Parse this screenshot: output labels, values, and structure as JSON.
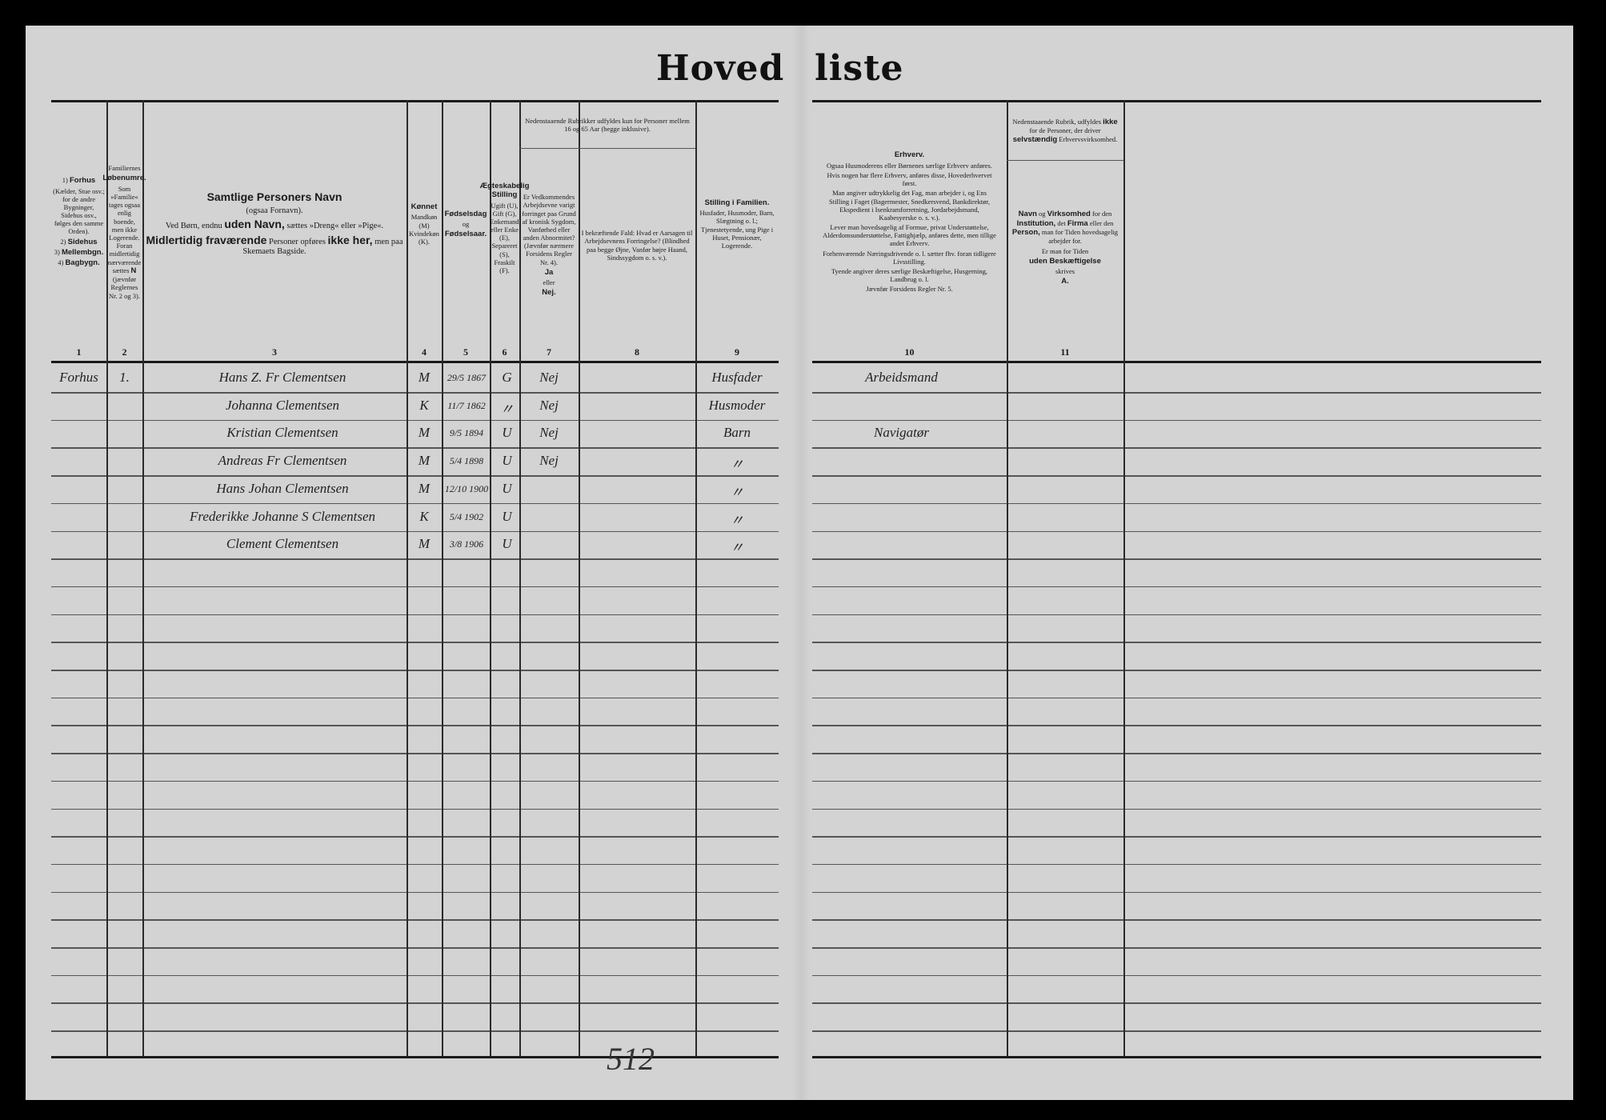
{
  "title": {
    "part1": "Hoved",
    "part2": "liste"
  },
  "page_number": "512",
  "headers": {
    "c1": [
      [
        {
          "text": "1) "
        },
        {
          "text": "Forhus",
          "bold": true
        }
      ],
      [
        {
          "text": "(Kælder, Stue osv.; for de andre Bygninger, Sidehus osv., følges den samme Orden)."
        }
      ],
      [
        {
          "text": "2) "
        },
        {
          "text": "Sidehus",
          "bold": true
        }
      ],
      [
        {
          "text": "3) "
        },
        {
          "text": "Mellembgn.",
          "bold": true
        }
      ],
      [
        {
          "text": "4) "
        },
        {
          "text": "Bagbygn.",
          "bold": true
        }
      ]
    ],
    "c2": [
      [
        {
          "text": "Familiernes"
        }
      ],
      [
        {
          "text": "Løbenumre.",
          "bold": true
        }
      ],
      [
        {
          "text": "Som »Familie« tages ogsaa enlig boende, men ikke Logerende. Foran midlertidig nærværende sættes "
        },
        {
          "text": "N",
          "bold": true
        },
        {
          "text": " (jævnfør Reglernes Nr. 2 og 3)."
        }
      ]
    ],
    "c3": [
      [
        {
          "text": "Samtlige Personers Navn",
          "bold": true
        }
      ],
      [
        {
          "text": "(ogsaa Fornavn)."
        }
      ],
      [
        {
          "text": "Ved Børn, endnu "
        },
        {
          "text": "uden Navn,",
          "bold": true
        },
        {
          "text": " sættes »Dreng« eller »Pige«."
        }
      ],
      [
        {
          "text": "Midlertidig fraværende",
          "bold": true
        },
        {
          "text": " Personer opføres "
        },
        {
          "text": "ikke her,",
          "bold": true
        },
        {
          "text": " men paa Skemaets Bagside."
        }
      ]
    ],
    "c4": [
      [
        {
          "text": "Kønnet",
          "bold": true
        }
      ],
      [
        {
          "text": "Mandkøn (M) Kvindekøn (K)."
        }
      ]
    ],
    "c5": [
      [
        {
          "text": "Fødselsdag",
          "bold": true
        }
      ],
      [
        {
          "text": "og"
        }
      ],
      [
        {
          "text": "Fødselsaar.",
          "bold": true
        }
      ]
    ],
    "c6": [
      [
        {
          "text": "Ægteskabelig Stilling",
          "bold": true
        }
      ],
      [
        {
          "text": "Ugift (U), Gift (G), Enkemand eller Enke (E), Separeret (S), Fraskilt (F)."
        }
      ]
    ],
    "c78_top": [
      [
        {
          "text": "Nedenstaaende Rubrikker udfyldes kun for Personer mellem 16 og 65 Aar (begge inklusive)."
        }
      ]
    ],
    "c7": [
      [
        {
          "text": "Er Vedkommendes Arbejdsevne varigt forringet paa Grund af kronisk Sygdom, Vanførhed eller anden Abnormitet? (Jævnfør nærmere Forsidens Regler Nr. 4)."
        }
      ],
      [
        {
          "text": "Ja",
          "bold": true
        }
      ],
      [
        {
          "text": "eller"
        }
      ],
      [
        {
          "text": "Nej.",
          "bold": true
        }
      ]
    ],
    "c8": [
      [
        {
          "text": "I bekræftende Fald: Hvad er Aarsagen til Arbejdsevnens Forringelse? (Blindhed paa begge Øjne, Vanfør højre Haand, Sindssygdom o. s. v.)."
        }
      ]
    ],
    "c9": [
      [
        {
          "text": "Stilling i Familien.",
          "bold": true
        }
      ],
      [
        {
          "text": "Husfader, Husmoder, Barn, Slægtning o. l.; Tjenestetyende, ung Pige i Huset, Pensionær, Logerende."
        }
      ]
    ],
    "c10": [
      [
        {
          "text": "Erhverv.",
          "bold": true
        }
      ],
      [
        {
          "text": "Ogsaa Husmoderens eller Børnenes særlige Erhverv anføres."
        }
      ],
      [
        {
          "text": "Hvis nogen har flere Erhverv, anføres disse, Hovederhvervet først."
        }
      ],
      [
        {
          "text": "Man angiver udtrykkelig det Fag, man arbejder i, og Ens Stilling i Faget (Bagermester, Snedkersvend, Bankdirektør, Ekspedient i Isenkramforretning, Jordarbejdsmand, Kaabesyerske o. s. v.)."
        }
      ],
      [
        {
          "text": "Lever man hovedsagelig af Formue, privat Understøttelse, Alderdomsunderstøttelse, Fattighjælp, anføres dette, men tillige andet Erhverv."
        }
      ],
      [
        {
          "text": "Forhenværende Næringsdrivende o. l. sætter fhv. foran tidligere Livsstilling."
        }
      ],
      [
        {
          "text": "Tyende angiver deres særlige Beskæftigelse, Husgerning, Landbrug o. l."
        }
      ],
      [
        {
          "text": "Jævnfør Forsidens Regler Nr. 5."
        }
      ]
    ],
    "c11_top": [
      [
        {
          "text": "Nedenstaaende Rubrik, udfyldes "
        },
        {
          "text": "ikke",
          "bold": true
        },
        {
          "text": " for de Personer, der driver "
        },
        {
          "text": "selvstændig",
          "bold": true
        },
        {
          "text": " Erhvervsvirksomhed."
        }
      ]
    ],
    "c11": [
      [
        {
          "text": "Navn",
          "bold": true
        },
        {
          "text": " og "
        },
        {
          "text": "Virksomhed",
          "bold": true
        },
        {
          "text": " for den "
        },
        {
          "text": "Institution,",
          "bold": true
        },
        {
          "text": " det "
        },
        {
          "text": "Firma",
          "bold": true
        },
        {
          "text": " eller den "
        },
        {
          "text": "Person,",
          "bold": true
        },
        {
          "text": " man for Tiden hovedsagelig arbejder for."
        }
      ],
      [
        {
          "text": "Er man for Tiden"
        }
      ],
      [
        {
          "text": "uden Beskæftigelse",
          "bold": true
        }
      ],
      [
        {
          "text": "skrives"
        }
      ],
      [
        {
          "text": "A.",
          "bold": true
        }
      ]
    ]
  },
  "column_numbers": [
    "1",
    "2",
    "3",
    "4",
    "5",
    "6",
    "7",
    "8",
    "9",
    "10",
    "11"
  ],
  "rows": [
    {
      "building": "Forhus",
      "family_no": "1.",
      "name": "Hans Z. Fr Clementsen",
      "sex": "M",
      "birth": "29/5 1867",
      "marital": "G",
      "disabled": "Nej",
      "family_position": "Husfader",
      "occupation": "Arbeidsmand"
    },
    {
      "building": "",
      "family_no": "",
      "name": "Johanna Clementsen",
      "sex": "K",
      "birth": "11/7 1862",
      "marital": "〃",
      "disabled": "Nej",
      "family_position": "Husmoder",
      "occupation": ""
    },
    {
      "building": "",
      "family_no": "",
      "name": "Kristian Clementsen",
      "sex": "M",
      "birth": "9/5 1894",
      "marital": "U",
      "disabled": "Nej",
      "family_position": "Barn",
      "occupation": "Navigatør"
    },
    {
      "building": "",
      "family_no": "",
      "name": "Andreas Fr Clementsen",
      "sex": "M",
      "birth": "5/4 1898",
      "marital": "U",
      "disabled": "Nej",
      "family_position": "〃",
      "occupation": ""
    },
    {
      "building": "",
      "family_no": "",
      "name": "Hans Johan Clementsen",
      "sex": "M",
      "birth": "12/10 1900",
      "marital": "U",
      "disabled": "",
      "family_position": "〃",
      "occupation": ""
    },
    {
      "building": "",
      "family_no": "",
      "name": "Frederikke Johanne S Clementsen",
      "sex": "K",
      "birth": "5/4 1902",
      "marital": "U",
      "disabled": "",
      "family_position": "〃",
      "occupation": ""
    },
    {
      "building": "",
      "family_no": "",
      "name": "Clement Clementsen",
      "sex": "M",
      "birth": "3/8 1906",
      "marital": "U",
      "disabled": "",
      "family_position": "〃",
      "occupation": ""
    }
  ]
}
